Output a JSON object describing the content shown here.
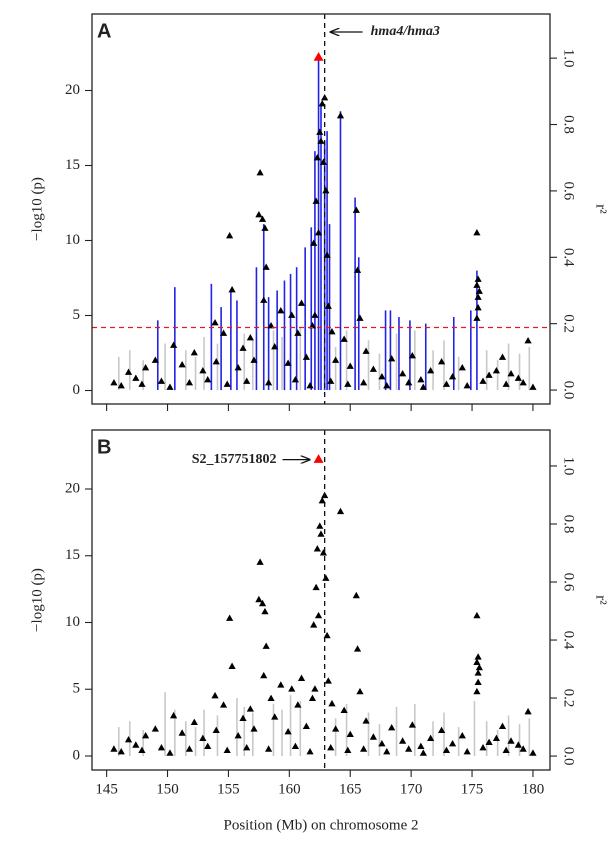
{
  "chart_data": [
    {
      "type": "scatter",
      "panel_label": "A",
      "ylabel": "−log10 (p)",
      "y2label": "r²",
      "annotation": "hma4/hma3",
      "xlim": [
        143.8,
        181.4
      ],
      "ylim": [
        -0.9,
        25.1
      ],
      "y2lim": [
        -0.042,
        1.133
      ],
      "xticks": [
        145,
        150,
        155,
        160,
        165,
        170,
        175,
        180
      ],
      "show_xtick_labels": false,
      "yticks": [
        0,
        5,
        10,
        15,
        20
      ],
      "y2ticks": [
        {
          "value": 0,
          "label": "0.0"
        },
        0.2,
        0.4,
        0.6,
        0.8,
        {
          "value": 1,
          "label": "1.0"
        }
      ],
      "threshold": 4.2,
      "threshold_color": "#e41a1c",
      "marker_x": 162.9,
      "lead": {
        "x": 162.4,
        "value": 22.2,
        "color": "#ff0000"
      },
      "series": [
        {
          "style": "vline",
          "axis": "y2",
          "color": "#c8c8c8",
          "x": [
            146.0,
            146.9,
            148.0,
            149.8,
            151.5,
            152.3,
            153.0,
            154.1,
            156.3,
            157.0,
            158.7,
            159.4,
            160.9,
            163.8,
            164.7,
            166.5,
            167.4,
            168.8,
            170.3,
            171.8,
            172.7,
            173.9,
            176.2,
            177.1,
            178.0,
            178.9,
            179.7
          ],
          "values": [
            0.1,
            0.12,
            0.09,
            0.14,
            0.12,
            0.1,
            0.16,
            0.14,
            0.17,
            0.15,
            0.18,
            0.16,
            0.19,
            0.13,
            0.18,
            0.15,
            0.11,
            0.17,
            0.18,
            0.12,
            0.15,
            0.1,
            0.12,
            0.09,
            0.14,
            0.11,
            0.13
          ]
        },
        {
          "style": "vline",
          "axis": "y2",
          "color": "#2323e6",
          "x": [
            149.2,
            150.6,
            153.6,
            154.4,
            155.2,
            155.7,
            157.3,
            157.9,
            158.3,
            159.0,
            159.6,
            160.1,
            160.6,
            161.3,
            161.8,
            162.1,
            162.4,
            162.6,
            162.9,
            163.1,
            163.3,
            164.2,
            165.4,
            165.7,
            167.9,
            168.3,
            169.0,
            169.9,
            171.2,
            173.5,
            174.9,
            175.4
          ],
          "values": [
            0.21,
            0.31,
            0.32,
            0.25,
            0.3,
            0.27,
            0.37,
            0.5,
            0.28,
            0.3,
            0.33,
            0.35,
            0.37,
            0.43,
            0.49,
            0.72,
            1.0,
            0.86,
            0.75,
            0.78,
            0.5,
            0.84,
            0.58,
            0.4,
            0.24,
            0.24,
            0.22,
            0.21,
            0.2,
            0.22,
            0.24,
            0.36
          ]
        },
        {
          "style": "triangle",
          "color": "#000000",
          "x": [
            162.9,
            162.7,
            164.2,
            162.5,
            162.6,
            162.3,
            162.8,
            157.6,
            163.0,
            162.2,
            165.5,
            157.5,
            157.8,
            158.0,
            162.4,
            175.4,
            155.1,
            162.0,
            163.1,
            158.1,
            165.6,
            175.5,
            175.4,
            175.6,
            175.5,
            155.3,
            157.9,
            161.0,
            163.2,
            162.1,
            159.3,
            160.2,
            175.5,
            175.4,
            153.9,
            158.5,
            161.9,
            163.5,
            165.8,
            154.6,
            156.8,
            160.7,
            150.5,
            152.2,
            156.2,
            158.8,
            164.5,
            166.3,
            168.4,
            170.1,
            172.5,
            177.5,
            179.6,
            149.0,
            146.8,
            147.4,
            148.2,
            151.2,
            152.9,
            154.0,
            155.8,
            157.1,
            159.9,
            161.4,
            163.8,
            165.0,
            166.9,
            167.6,
            169.3,
            170.8,
            171.6,
            173.4,
            174.2,
            176.4,
            177.0,
            178.2,
            178.8,
            145.6,
            146.2,
            147.9,
            149.5,
            150.2,
            151.8,
            153.3,
            154.9,
            156.5,
            158.3,
            160.5,
            161.7,
            163.4,
            164.8,
            166.1,
            168.0,
            169.8,
            171.0,
            172.9,
            174.6,
            175.9,
            177.8,
            179.2,
            180.0
          ],
          "values": [
            19.5,
            19.1,
            18.3,
            17.2,
            16.6,
            15.5,
            15.2,
            14.5,
            13.3,
            12.6,
            12.0,
            11.7,
            11.4,
            10.8,
            10.5,
            10.5,
            10.3,
            9.8,
            9.0,
            8.2,
            8.0,
            7.4,
            7.0,
            6.6,
            6.2,
            6.7,
            6.0,
            5.8,
            5.6,
            5.0,
            5.3,
            5.0,
            5.5,
            4.8,
            4.5,
            4.3,
            4.3,
            3.9,
            4.8,
            3.8,
            3.5,
            3.8,
            3.0,
            2.5,
            2.8,
            2.9,
            3.4,
            2.6,
            2.1,
            2.3,
            1.9,
            2.2,
            3.3,
            2.0,
            1.2,
            0.8,
            1.5,
            1.7,
            1.3,
            1.9,
            1.5,
            2.0,
            1.8,
            2.2,
            2.0,
            1.6,
            1.4,
            0.9,
            1.1,
            0.7,
            1.3,
            0.9,
            1.5,
            1.0,
            1.3,
            1.1,
            0.8,
            0.5,
            0.3,
            0.4,
            0.6,
            0.2,
            0.5,
            0.7,
            0.4,
            0.6,
            0.5,
            0.7,
            0.3,
            0.6,
            0.4,
            0.5,
            0.3,
            0.5,
            0.2,
            0.4,
            0.3,
            0.6,
            0.4,
            0.5,
            0.2
          ]
        }
      ]
    },
    {
      "type": "scatter",
      "panel_label": "B",
      "ylabel": "−log10 (p)",
      "y2label": "r²",
      "annotation": "S2_157751802",
      "xlabel": "Position (Mb) on chromosome 2",
      "xlim": [
        143.8,
        181.4
      ],
      "ylim": [
        -1.05,
        24.42
      ],
      "y2lim": [
        -0.048,
        1.124
      ],
      "xticks": [
        145,
        150,
        155,
        160,
        165,
        170,
        175,
        180
      ],
      "show_xtick_labels": true,
      "yticks": [
        0,
        5,
        10,
        15,
        20
      ],
      "y2ticks": [
        {
          "value": 0,
          "label": "0.0"
        },
        0.2,
        0.4,
        0.6,
        0.8,
        {
          "value": 1,
          "label": "1.0"
        }
      ],
      "marker_x": 162.9,
      "lead": {
        "x": 162.4,
        "value": 22.2,
        "color": "#ff0000"
      },
      "series": [
        {
          "style": "vline",
          "axis": "y2",
          "color": "#c8c8c8",
          "x": [
            146.0,
            146.9,
            148.0,
            149.8,
            150.6,
            151.5,
            152.3,
            153.0,
            154.1,
            155.7,
            156.3,
            157.0,
            158.7,
            159.4,
            160.1,
            160.9,
            163.8,
            164.7,
            166.5,
            167.4,
            168.8,
            170.3,
            171.8,
            172.7,
            173.9,
            175.2,
            176.2,
            177.1,
            178.0,
            178.9,
            179.7
          ],
          "values": [
            0.1,
            0.12,
            0.09,
            0.22,
            0.16,
            0.12,
            0.1,
            0.16,
            0.14,
            0.2,
            0.17,
            0.15,
            0.18,
            0.16,
            0.21,
            0.19,
            0.13,
            0.18,
            0.15,
            0.11,
            0.17,
            0.18,
            0.12,
            0.15,
            0.1,
            0.19,
            0.12,
            0.09,
            0.14,
            0.11,
            0.13
          ]
        },
        {
          "style": "triangle",
          "color": "#000000",
          "x": [
            162.9,
            162.7,
            164.2,
            162.5,
            162.6,
            162.3,
            162.8,
            157.6,
            163.0,
            162.2,
            165.5,
            157.5,
            157.8,
            158.0,
            162.4,
            175.4,
            155.1,
            162.0,
            163.1,
            158.1,
            165.6,
            175.5,
            175.4,
            175.6,
            175.5,
            155.3,
            157.9,
            161.0,
            163.2,
            162.1,
            159.3,
            160.2,
            175.5,
            175.4,
            153.9,
            158.5,
            161.9,
            163.5,
            165.8,
            154.6,
            156.8,
            160.7,
            150.5,
            152.2,
            156.2,
            158.8,
            164.5,
            166.3,
            168.4,
            170.1,
            172.5,
            177.5,
            179.6,
            149.0,
            146.8,
            147.4,
            148.2,
            151.2,
            152.9,
            154.0,
            155.8,
            157.1,
            159.9,
            161.4,
            163.8,
            165.0,
            166.9,
            167.6,
            169.3,
            170.8,
            171.6,
            173.4,
            174.2,
            176.4,
            177.0,
            178.2,
            178.8,
            145.6,
            146.2,
            147.9,
            149.5,
            150.2,
            151.8,
            153.3,
            154.9,
            156.5,
            158.3,
            160.5,
            161.7,
            163.4,
            164.8,
            166.1,
            168.0,
            169.8,
            171.0,
            172.9,
            174.6,
            175.9,
            177.8,
            179.2,
            180.0
          ],
          "values": [
            19.5,
            19.1,
            18.3,
            17.2,
            16.6,
            15.5,
            15.2,
            14.5,
            13.3,
            12.6,
            12.0,
            11.7,
            11.4,
            10.8,
            10.5,
            10.5,
            10.3,
            9.8,
            9.0,
            8.2,
            8.0,
            7.4,
            7.0,
            6.6,
            6.2,
            6.7,
            6.0,
            5.8,
            5.6,
            5.0,
            5.3,
            5.0,
            5.5,
            4.8,
            4.5,
            4.3,
            4.3,
            3.9,
            4.8,
            3.8,
            3.5,
            3.8,
            3.0,
            2.5,
            2.8,
            2.9,
            3.4,
            2.6,
            2.1,
            2.3,
            1.9,
            2.2,
            3.3,
            2.0,
            1.2,
            0.8,
            1.5,
            1.7,
            1.3,
            1.9,
            1.5,
            2.0,
            1.8,
            2.2,
            2.0,
            1.6,
            1.4,
            0.9,
            1.1,
            0.7,
            1.3,
            0.9,
            1.5,
            1.0,
            1.3,
            1.1,
            0.8,
            0.5,
            0.3,
            0.4,
            0.6,
            0.2,
            0.5,
            0.7,
            0.4,
            0.6,
            0.5,
            0.7,
            0.3,
            0.6,
            0.4,
            0.5,
            0.3,
            0.5,
            0.2,
            0.4,
            0.3,
            0.6,
            0.4,
            0.5,
            0.2
          ]
        }
      ]
    }
  ]
}
